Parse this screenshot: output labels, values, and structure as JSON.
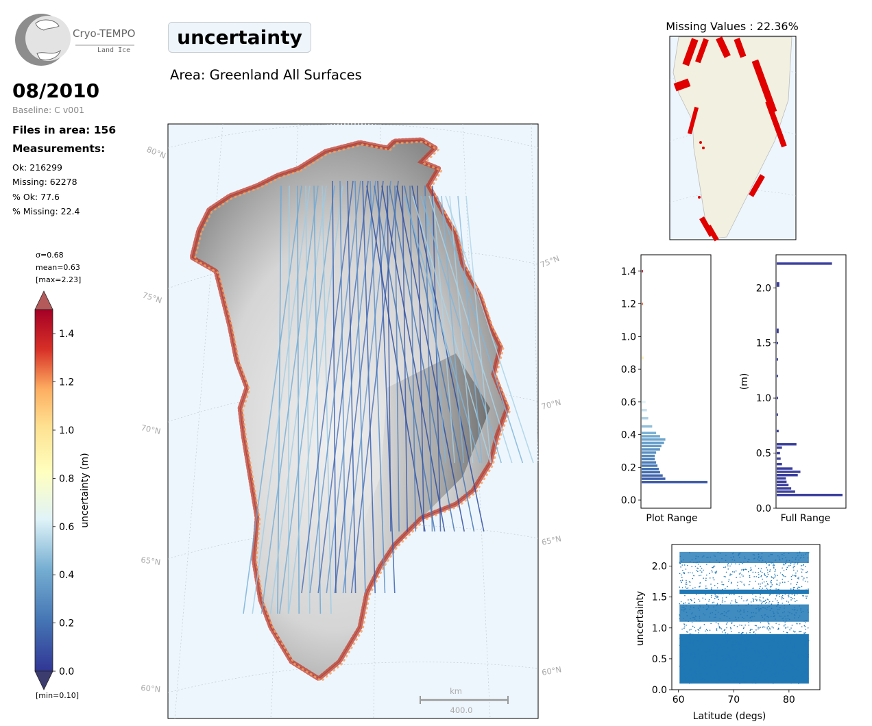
{
  "logo": {
    "title": "Cryo-TEMPO",
    "subtitle": "Land Ice"
  },
  "header": {
    "variable": "uncertainty",
    "area": "Area: Greenland All Surfaces"
  },
  "sidebar": {
    "date": "08/2010",
    "baseline": "Baseline: C v001",
    "files": "Files in area: 156",
    "measurements_title": "Measurements:",
    "stats": [
      "Ok: 216299",
      "Missing: 62278",
      "% Ok: 77.6",
      "% Missing: 22.4"
    ]
  },
  "colorbar": {
    "sigma": "σ=0.68",
    "mean": "mean=0.63",
    "max": "[max=2.23]",
    "min": "[min=0.10]",
    "label": "uncertainty (m)",
    "ticks": [
      "0.0",
      "0.2",
      "0.4",
      "0.6",
      "0.8",
      "1.0",
      "1.2",
      "1.4"
    ]
  },
  "map": {
    "lat_labels_left": [
      "80°N",
      "75°N",
      "70°N",
      "65°N",
      "60°N"
    ],
    "lat_labels_right": [
      "75°N",
      "70°N",
      "65°N",
      "60°N"
    ],
    "scalebar_unit": "km",
    "scalebar_value": "400.0"
  },
  "missing_map": {
    "title": "Missing Values : 22.36%"
  },
  "colors": {
    "ocean": "#eef6fd",
    "land": "#f2f0e0",
    "missing": "#e00000",
    "hist_full": "#3b3f9e",
    "scatter": "#1f77b4"
  },
  "chart_data": [
    {
      "type": "bar",
      "orientation": "horizontal",
      "title": "",
      "xlabel": "Plot Range",
      "ylabel": "",
      "ylim": [
        -0.05,
        1.5
      ],
      "yticks": [
        "0.0",
        "0.2",
        "0.4",
        "0.6",
        "0.8",
        "1.0",
        "1.2",
        "1.4"
      ],
      "bins": [
        0.11,
        0.13,
        0.15,
        0.17,
        0.19,
        0.21,
        0.23,
        0.25,
        0.27,
        0.29,
        0.31,
        0.33,
        0.35,
        0.37,
        0.39,
        0.41,
        0.45,
        0.5,
        0.55,
        0.6,
        0.87,
        1.2,
        1.4
      ],
      "counts": [
        100,
        36,
        32,
        28,
        26,
        24,
        22,
        20,
        20,
        22,
        28,
        30,
        34,
        36,
        28,
        22,
        16,
        10,
        8,
        6,
        3,
        2,
        2
      ]
    },
    {
      "type": "bar",
      "orientation": "horizontal",
      "title": "",
      "xlabel": "Full Range",
      "ylabel": "(m)",
      "ylim": [
        0,
        2.3
      ],
      "yticks": [
        "0.0",
        "0.5",
        "1.0",
        "1.5",
        "2.0"
      ],
      "bins": [
        0.12,
        0.15,
        0.18,
        0.21,
        0.24,
        0.27,
        0.3,
        0.33,
        0.36,
        0.4,
        0.45,
        0.5,
        0.55,
        0.58,
        0.7,
        0.85,
        1.0,
        1.2,
        1.35,
        1.5,
        1.6,
        1.62,
        2.02,
        2.04,
        2.22
      ],
      "counts": [
        100,
        28,
        22,
        18,
        15,
        14,
        32,
        36,
        24,
        8,
        6,
        5,
        8,
        30,
        3,
        2,
        2,
        2,
        2,
        2,
        3,
        3,
        4,
        4,
        84
      ]
    },
    {
      "type": "scatter",
      "title": "",
      "xlabel": "Latitude (degs)",
      "ylabel": "uncertainty",
      "xlim": [
        58.8,
        85.6
      ],
      "ylim": [
        0,
        2.35
      ],
      "xticks": [
        "60",
        "70",
        "80"
      ],
      "yticks": [
        "0.0",
        "0.5",
        "1.0",
        "1.5",
        "2.0"
      ],
      "x_range": [
        60.2,
        83.6
      ],
      "y_range": [
        0.1,
        2.23
      ],
      "point_count": 216299
    }
  ]
}
